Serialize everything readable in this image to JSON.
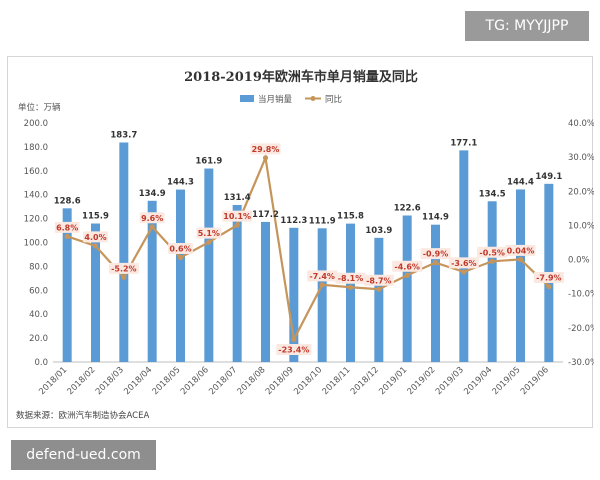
{
  "badges": {
    "top_right": "TG: MYYJJPP",
    "bottom_left": "defend-ued.com"
  },
  "colors": {
    "bar": "#5b9bd5",
    "line": "#c5955b",
    "label_box": "#fbe9e1",
    "label_text": "#c0392b"
  },
  "chart_data": {
    "type": "bar",
    "title": "2018-2019年欧洲车市单月销量及同比",
    "unit_label": "单位：万辆",
    "source": "数据来源：欧洲汽车制造协会ACEA",
    "legend_placement": "top-center",
    "categories": [
      "2018/01",
      "2018/02",
      "2018/03",
      "2018/04",
      "2018/05",
      "2018/06",
      "2018/07",
      "2018/08",
      "2018/09",
      "2018/10",
      "2018/11",
      "2018/12",
      "2019/01",
      "2019/02",
      "2019/03",
      "2019/04",
      "2019/05",
      "2019/06"
    ],
    "series": [
      {
        "name": "当月销量",
        "type": "bar",
        "axis": "left",
        "values": [
          128.6,
          115.9,
          183.7,
          134.9,
          144.3,
          161.9,
          131.4,
          117.2,
          112.3,
          111.9,
          115.8,
          103.9,
          122.6,
          114.9,
          177.1,
          134.5,
          144.4,
          149.1
        ],
        "labels": [
          "128.6",
          "115.9",
          "183.7",
          "134.9",
          "144.3",
          "161.9",
          "131.4",
          "117.2",
          "112.3",
          "111.9",
          "115.8",
          "103.9",
          "122.6",
          "114.9",
          "177.1",
          "134.5",
          "144.4",
          "149.1"
        ]
      },
      {
        "name": "同比",
        "type": "line",
        "axis": "right",
        "values": [
          6.8,
          4.0,
          -5.2,
          9.6,
          0.6,
          5.1,
          10.1,
          29.8,
          -23.4,
          -7.4,
          -8.1,
          -8.7,
          -4.6,
          -0.9,
          -3.6,
          -0.5,
          0.04,
          -7.9
        ],
        "labels": [
          "6.8%",
          "4.0%",
          "-5.2%",
          "9.6%",
          "0.6%",
          "5.1%",
          "10.1%",
          "29.8%",
          "-23.4%",
          "-7.4%",
          "-8.1%",
          "-8.7%",
          "-4.6%",
          "-0.9%",
          "-3.6%",
          "-0.5%",
          "0.04%",
          "-7.9%"
        ]
      }
    ],
    "y_left": {
      "min": 0,
      "max": 200,
      "ticks": [
        "0.0",
        "20.0",
        "40.0",
        "60.0",
        "80.0",
        "100.0",
        "120.0",
        "140.0",
        "160.0",
        "180.0",
        "200.0"
      ]
    },
    "y_right": {
      "min": -30,
      "max": 40,
      "ticks": [
        "-30.0%",
        "-20.0%",
        "-10.0%",
        "0.0%",
        "10.0%",
        "20.0%",
        "30.0%",
        "40.0%"
      ]
    },
    "grid": false
  }
}
